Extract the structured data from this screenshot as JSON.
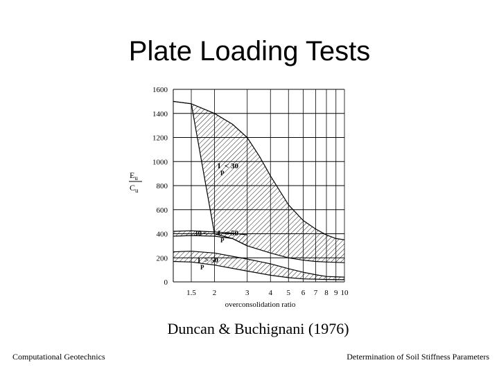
{
  "slide": {
    "title": "Plate Loading Tests",
    "caption": "Duncan & Buchignani (1976)",
    "footer_left": "Computational Geotechnics",
    "footer_right": "Determination of Soil Stiffness Parameters"
  },
  "chart_data": {
    "type": "area",
    "xlabel": "overconsolidation ratio",
    "ylabel_numerator": "E",
    "ylabel_numerator_sub": "u",
    "ylabel_denominator": "C",
    "ylabel_denominator_sub": "u",
    "x_scale": "log",
    "xlim": [
      1.2,
      10
    ],
    "ylim": [
      0,
      1600
    ],
    "x_ticks": [
      1.5,
      2,
      3,
      4,
      5,
      6,
      7,
      8,
      9,
      10
    ],
    "x_tick_labels": [
      "1.5",
      "2",
      "3",
      "4",
      "5",
      "6",
      "7",
      "8",
      "9",
      "10"
    ],
    "y_ticks": [
      0,
      200,
      400,
      600,
      800,
      1000,
      1200,
      1400,
      1600
    ],
    "y_tick_labels": [
      "0",
      "200",
      "400",
      "600",
      "800",
      "1000",
      "1200",
      "1400",
      "1600"
    ],
    "grid": true,
    "series": [
      {
        "label_main": "I",
        "label_sub": "P",
        "label_rest": "< 30",
        "upper": [
          [
            1.2,
            1500
          ],
          [
            1.5,
            1480
          ],
          [
            2,
            1400
          ],
          [
            2.5,
            1310
          ],
          [
            3,
            1200
          ],
          [
            3.5,
            1040
          ],
          [
            4,
            880
          ],
          [
            5,
            640
          ],
          [
            6,
            510
          ],
          [
            7,
            440
          ],
          [
            8,
            390
          ],
          [
            9,
            360
          ],
          [
            10,
            350
          ]
        ],
        "lower": [
          [
            1.2,
            1500
          ],
          [
            1.5,
            1480
          ],
          [
            2,
            400
          ],
          [
            2.5,
            360
          ],
          [
            3,
            300
          ],
          [
            4,
            240
          ],
          [
            5,
            200
          ],
          [
            6,
            180
          ],
          [
            7,
            170
          ],
          [
            8,
            165
          ],
          [
            10,
            160
          ]
        ]
      },
      {
        "label_main": "I",
        "label_sub": "P",
        "label_rest_prefix": "30 <",
        "label_rest": "< 50",
        "upper": [
          [
            1.2,
            420
          ],
          [
            1.5,
            425
          ],
          [
            2,
            415
          ],
          [
            2.5,
            405
          ],
          [
            3,
            390
          ]
        ],
        "lower": [
          [
            1.2,
            380
          ],
          [
            1.5,
            385
          ],
          [
            2,
            380
          ],
          [
            2.5,
            360
          ],
          [
            3,
            300
          ]
        ]
      },
      {
        "label_main": "I",
        "label_sub": "P",
        "label_rest": "> 50",
        "upper": [
          [
            1.2,
            250
          ],
          [
            1.5,
            255
          ],
          [
            2,
            240
          ],
          [
            3,
            190
          ],
          [
            4,
            150
          ],
          [
            5,
            110
          ],
          [
            6,
            80
          ],
          [
            7,
            60
          ],
          [
            8,
            45
          ],
          [
            10,
            40
          ]
        ],
        "lower": [
          [
            1.2,
            170
          ],
          [
            1.5,
            165
          ],
          [
            2,
            140
          ],
          [
            3,
            90
          ],
          [
            4,
            55
          ],
          [
            5,
            35
          ],
          [
            6,
            25
          ],
          [
            8,
            20
          ],
          [
            10,
            18
          ]
        ]
      }
    ]
  }
}
